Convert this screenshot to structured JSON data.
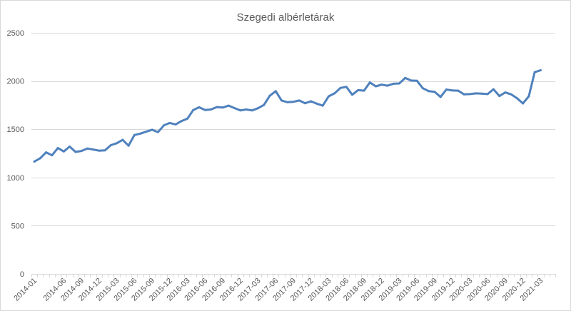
{
  "chart_data": {
    "type": "line",
    "title": "Szegedi albérletárak",
    "xlabel": "",
    "ylabel": "",
    "ylim": [
      0,
      2500
    ],
    "y_ticks": [
      0,
      500,
      1000,
      1500,
      2000,
      2500
    ],
    "grid": true,
    "legend": "none",
    "x_tick_labels": [
      "2014-01",
      "2014-06",
      "2014-09",
      "2014-12",
      "2015-03",
      "2015-06",
      "2015-09",
      "2015-12",
      "2016-03",
      "2016-06",
      "2016-09",
      "2016-12",
      "2017-03",
      "2017-06",
      "2017-09",
      "2017-12",
      "2018-03",
      "2018-06",
      "2018-09",
      "2018-12",
      "2019-03",
      "2019-06",
      "2019-09",
      "2019-12",
      "2020-03",
      "2020-06",
      "2020-09",
      "2020-12",
      "2021-03"
    ],
    "series": [
      {
        "color": "#4f81bd",
        "x": [
          "2014-01",
          "2014-02",
          "2014-03",
          "2014-04",
          "2014-05",
          "2014-06",
          "2014-07",
          "2014-08",
          "2014-09",
          "2014-10",
          "2014-11",
          "2014-12",
          "2015-01",
          "2015-02",
          "2015-03",
          "2015-04",
          "2015-05",
          "2015-06",
          "2015-07",
          "2015-08",
          "2015-09",
          "2015-10",
          "2015-11",
          "2015-12",
          "2016-01",
          "2016-02",
          "2016-03",
          "2016-04",
          "2016-05",
          "2016-06",
          "2016-07",
          "2016-08",
          "2016-09",
          "2016-10",
          "2016-11",
          "2016-12",
          "2017-01",
          "2017-02",
          "2017-03",
          "2017-04",
          "2017-05",
          "2017-06",
          "2017-07",
          "2017-08",
          "2017-09",
          "2017-10",
          "2017-11",
          "2017-12",
          "2018-01",
          "2018-02",
          "2018-03",
          "2018-04",
          "2018-05",
          "2018-06",
          "2018-07",
          "2018-08",
          "2018-09",
          "2018-10",
          "2018-11",
          "2018-12",
          "2019-01",
          "2019-02",
          "2019-03",
          "2019-04",
          "2019-05",
          "2019-06",
          "2019-07",
          "2019-08",
          "2019-09",
          "2019-10",
          "2019-11",
          "2019-12",
          "2020-01",
          "2020-02",
          "2020-03",
          "2020-04",
          "2020-05",
          "2020-06",
          "2020-07",
          "2020-08",
          "2020-09",
          "2020-10",
          "2020-11",
          "2020-12",
          "2021-01",
          "2021-02",
          "2021-03",
          "2021-04",
          "2021-05"
        ],
        "values": [
          1165,
          1200,
          1260,
          1230,
          1305,
          1270,
          1320,
          1265,
          1275,
          1300,
          1290,
          1278,
          1282,
          1335,
          1355,
          1390,
          1330,
          1440,
          1455,
          1475,
          1495,
          1470,
          1540,
          1565,
          1550,
          1585,
          1610,
          1700,
          1728,
          1700,
          1705,
          1730,
          1725,
          1745,
          1720,
          1695,
          1705,
          1695,
          1718,
          1752,
          1848,
          1895,
          1798,
          1780,
          1785,
          1798,
          1770,
          1790,
          1765,
          1745,
          1842,
          1872,
          1928,
          1940,
          1858,
          1905,
          1900,
          1985,
          1945,
          1962,
          1952,
          1972,
          1975,
          2032,
          2005,
          2002,
          1925,
          1895,
          1888,
          1835,
          1912,
          1902,
          1900,
          1862,
          1865,
          1872,
          1870,
          1865,
          1915,
          1845,
          1882,
          1862,
          1822,
          1768,
          1842,
          2092,
          2112,
          null,
          null
        ]
      }
    ]
  }
}
